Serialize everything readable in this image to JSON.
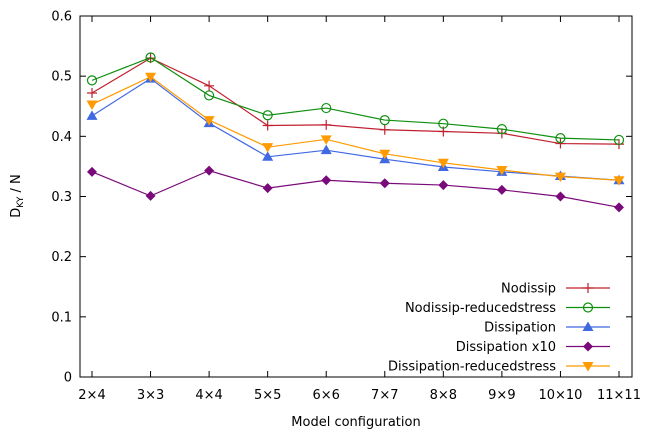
{
  "chart_data": {
    "type": "line",
    "categories": [
      "2x4",
      "3x3",
      "4x4",
      "5x5",
      "6x6",
      "7x7",
      "8x8",
      "9x9",
      "10x10",
      "11x11"
    ],
    "xlabel": "Model configuration",
    "ylabel_main": "D",
    "ylabel_sub": "KY",
    "ylabel_tail": " / N",
    "ylim": [
      0,
      0.6
    ],
    "yticks": [
      "0",
      "0.1",
      "0.2",
      "0.3",
      "0.4",
      "0.5",
      "0.6"
    ],
    "grid": false,
    "legend_position": "bottom-right",
    "series": [
      {
        "name": "Nodissip",
        "color": "#c0202f",
        "marker": "plus",
        "values": [
          0.472,
          0.53,
          0.484,
          0.418,
          0.419,
          0.411,
          0.408,
          0.405,
          0.388,
          0.387
        ]
      },
      {
        "name": "Nodissip-reducedstress",
        "color": "#0f8f0f",
        "marker": "circle",
        "values": [
          0.493,
          0.531,
          0.468,
          0.435,
          0.447,
          0.427,
          0.421,
          0.412,
          0.397,
          0.394
        ]
      },
      {
        "name": "Dissipation",
        "color": "#4169e1",
        "marker": "triangle-up",
        "values": [
          0.434,
          0.496,
          0.422,
          0.366,
          0.377,
          0.362,
          0.349,
          0.341,
          0.334,
          0.327
        ]
      },
      {
        "name": "Dissipation x10",
        "color": "#7a0a7a",
        "marker": "diamond",
        "values": [
          0.341,
          0.301,
          0.343,
          0.314,
          0.327,
          0.322,
          0.319,
          0.311,
          0.3,
          0.282
        ]
      },
      {
        "name": "Dissipation-reducedstress",
        "color": "#ff9a00",
        "marker": "triangle-down",
        "values": [
          0.453,
          0.499,
          0.427,
          0.382,
          0.395,
          0.371,
          0.356,
          0.344,
          0.333,
          0.327
        ]
      }
    ]
  }
}
